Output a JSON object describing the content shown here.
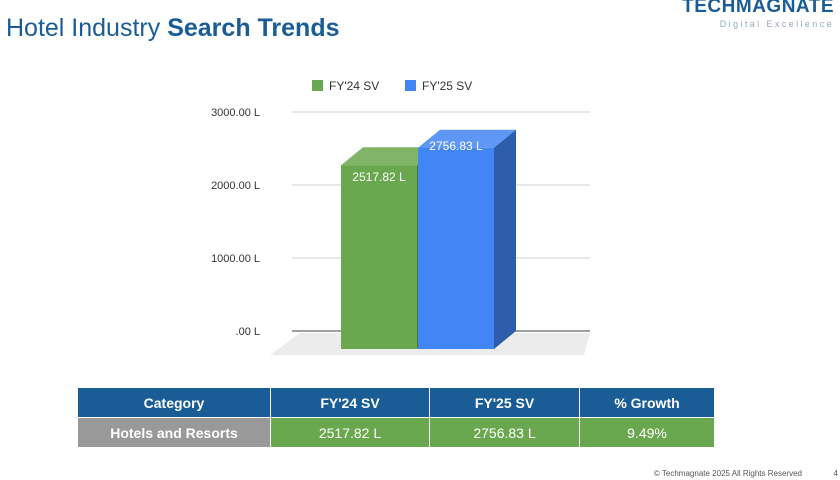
{
  "header": {
    "title_light": "Hotel Industry",
    "title_bold": "Search Trends"
  },
  "logo": {
    "name": "TECHMAGNATE",
    "tagline": "Digital Excellence"
  },
  "chart_data": {
    "type": "bar",
    "title": "",
    "xlabel": "",
    "ylabel": "",
    "categories": [
      "Hotels and Resorts"
    ],
    "series": [
      {
        "name": "FY'24 SV",
        "values": [
          2517.82
        ],
        "color": "#6aa84f",
        "label": "2517.82 L"
      },
      {
        "name": "FY'25 SV",
        "values": [
          2756.83
        ],
        "color": "#4285f4",
        "label": "2756.83 L"
      }
    ],
    "ylim": [
      0,
      3000
    ],
    "yticks": [
      {
        "value": 0,
        "label": ".00 L"
      },
      {
        "value": 1000,
        "label": "1000.00 L"
      },
      {
        "value": 2000,
        "label": "2000.00 L"
      },
      {
        "value": 3000,
        "label": "3000.00 L"
      }
    ],
    "grid": true,
    "legend_position": "top",
    "style": "3d"
  },
  "table": {
    "headers": [
      "Category",
      "FY'24 SV",
      "FY'25 SV",
      "% Growth"
    ],
    "rows": [
      [
        "Hotels and Resorts",
        "2517.82 L",
        "2756.83 L",
        "9.49%"
      ]
    ]
  },
  "footer": {
    "copyright": "© Techmagnate 2025 All Rights Reserved",
    "page": "4"
  }
}
